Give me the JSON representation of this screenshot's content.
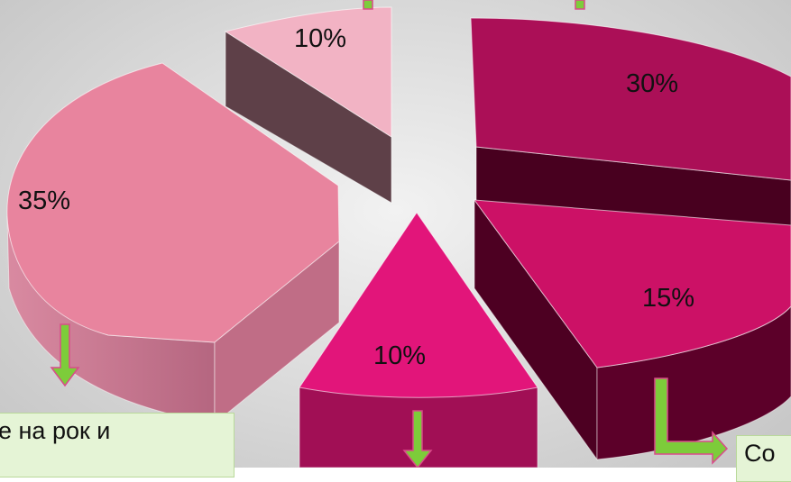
{
  "chart_data": {
    "type": "pie",
    "style": "3d-exploded",
    "slices": [
      {
        "label": "35%",
        "value": 35,
        "color": "#e8849e",
        "side_color": "#c06d86"
      },
      {
        "label": "10%",
        "value": 10,
        "color": "#f2b3c4",
        "side_color": "#5e4048"
      },
      {
        "label": "30%",
        "value": 30,
        "color": "#ab0f57",
        "side_color": "#48001f"
      },
      {
        "label": "15%",
        "value": 15,
        "color": "#cc1166",
        "side_color": "#4d0022"
      },
      {
        "label": "10%",
        "value": 10,
        "color": "#e2157a",
        "side_color": "#a10f55"
      }
    ]
  },
  "callouts": {
    "left_text": "вање на рок и",
    "right_text": "Co"
  },
  "colors": {
    "arrow": "#7dcc3a",
    "arrow_outline": "#d94b8a",
    "callout_bg": "#e5f4d6"
  }
}
